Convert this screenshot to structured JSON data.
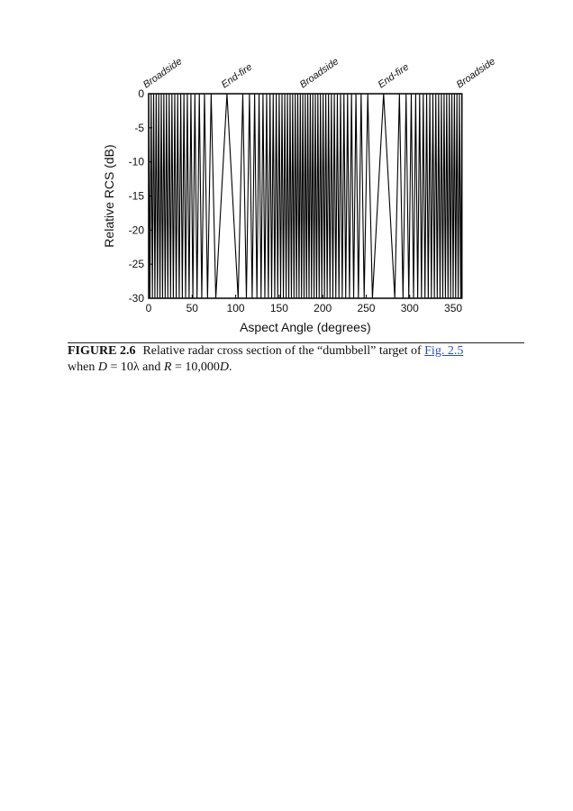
{
  "chart_data": {
    "type": "line",
    "y_label": "Relative RCS (dB)",
    "x_label": "Aspect Angle (degrees)",
    "annotations": [
      "Broadside",
      "End-fire",
      "Broadside",
      "End-fire",
      "Broadside"
    ],
    "color": "#000000",
    "xlim": [
      0,
      360
    ],
    "xticks": [
      0,
      50,
      100,
      150,
      200,
      250,
      300,
      350
    ],
    "ylim": [
      -30,
      0
    ],
    "yticks": [
      0,
      -5,
      -10,
      -15,
      -20,
      -25,
      -30
    ],
    "x": [
      0,
      1.43,
      2.87,
      4.3,
      5.74,
      7.18,
      8.63,
      10.08,
      11.54,
      13,
      14.48,
      15.96,
      17.46,
      18.97,
      20.49,
      22.02,
      23.58,
      25.15,
      26.74,
      28.36,
      30,
      31.67,
      33.37,
      35.1,
      36.87,
      38.68,
      40.54,
      42.45,
      44.43,
      46.47,
      48.59,
      50.81,
      53.13,
      55.59,
      58.21,
      61.04,
      64.16,
      67.67,
      71.81,
      77.16,
      90,
      102.84,
      108.19,
      112.33,
      115.84,
      118.96,
      121.79,
      124.41,
      126.87,
      129.19,
      131.41,
      133.53,
      135.57,
      137.55,
      139.46,
      141.32,
      143.13,
      144.9,
      146.63,
      148.33,
      150,
      151.64,
      153.26,
      154.85,
      156.42,
      157.98,
      159.51,
      161.03,
      162.54,
      164.04,
      165.52,
      167,
      168.46,
      169.92,
      171.37,
      172.82,
      174.26,
      175.7,
      177.13,
      178.57,
      180,
      181.43,
      182.87,
      184.3,
      185.74,
      187.18,
      188.63,
      190.08,
      191.54,
      193,
      194.48,
      195.96,
      197.46,
      198.97,
      200.49,
      202.02,
      203.58,
      205.15,
      206.74,
      208.36,
      210,
      211.67,
      213.37,
      215.1,
      216.87,
      218.68,
      220.54,
      222.45,
      224.43,
      226.47,
      228.59,
      230.81,
      233.13,
      235.59,
      238.21,
      241.04,
      244.16,
      247.67,
      251.81,
      257.16,
      270,
      282.84,
      288.19,
      292.33,
      295.84,
      298.96,
      301.79,
      304.41,
      306.87,
      309.19,
      311.41,
      313.53,
      315.57,
      317.55,
      319.46,
      321.32,
      323.13,
      324.9,
      326.63,
      328.33,
      330,
      331.64,
      333.26,
      334.85,
      336.42,
      337.98,
      339.51,
      341.03,
      342.54,
      344.04,
      345.52,
      347,
      348.46,
      349.92,
      351.37,
      352.82,
      354.26,
      355.7,
      357.13,
      358.57,
      360
    ],
    "values": [
      0,
      -30,
      0,
      -30,
      0,
      -30,
      0,
      -30,
      0,
      -30,
      0,
      -30,
      0,
      -30,
      0,
      -30,
      0,
      -30,
      0,
      -30,
      0,
      -30,
      0,
      -30,
      0,
      -30,
      0,
      -30,
      0,
      -30,
      0,
      -30,
      0,
      -30,
      0,
      -30,
      0,
      -30,
      0,
      -30,
      0,
      -30,
      0,
      -30,
      0,
      -30,
      0,
      -30,
      0,
      -30,
      0,
      -30,
      0,
      -30,
      0,
      -30,
      0,
      -30,
      0,
      -30,
      0,
      -30,
      0,
      -30,
      0,
      -30,
      0,
      -30,
      0,
      -30,
      0,
      -30,
      0,
      -30,
      0,
      -30,
      0,
      -30,
      0,
      -30,
      0,
      -30,
      0,
      -30,
      0,
      -30,
      0,
      -30,
      0,
      -30,
      0,
      -30,
      0,
      -30,
      0,
      -30,
      0,
      -30,
      0,
      -30,
      0,
      -30,
      0,
      -30,
      0,
      -30,
      0,
      -30,
      0,
      -30,
      0,
      -30,
      0,
      -30,
      0,
      -30,
      0,
      -30,
      0,
      -30,
      0,
      -30,
      0,
      -30,
      0,
      -30,
      0,
      -30,
      0,
      -30,
      0,
      -30,
      0,
      -30,
      0,
      -30,
      0,
      -30,
      0,
      -30,
      0,
      -30,
      0,
      -30,
      0,
      -30,
      0,
      -30,
      0,
      -30,
      0,
      -30,
      0,
      -30,
      0,
      -30,
      0,
      -30,
      0,
      -30,
      0
    ]
  },
  "caption": {
    "label": "FIGURE 2.6",
    "text": "Relative radar cross section of the “dumbbell” target of",
    "link": "Fig. 2.5",
    "line2": [
      "when ",
      "D",
      " = 10",
      "λ",
      " and ",
      "R",
      " = 10,000",
      "D",
      "."
    ]
  }
}
